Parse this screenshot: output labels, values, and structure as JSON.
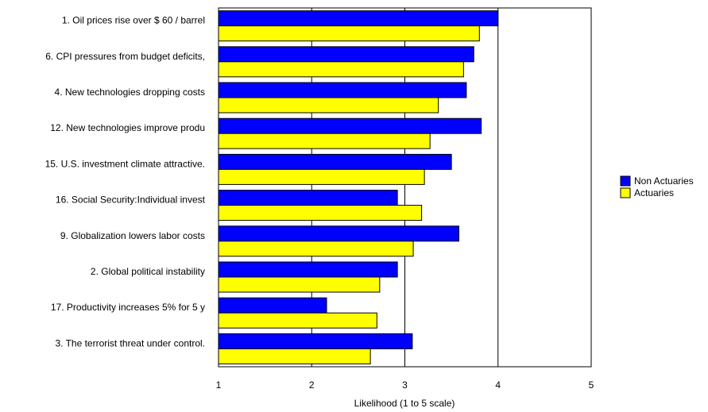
{
  "chart_data": {
    "type": "bar",
    "orientation": "horizontal",
    "title": "",
    "xlabel": "Likelihood (1 to 5 scale)",
    "ylabel": "",
    "xlim": [
      1,
      5
    ],
    "xticks": [
      1,
      2,
      3,
      4,
      5
    ],
    "grid": "vertical",
    "legend_position": "right",
    "categories": [
      "1. Oil prices rise over $ 60 / barrel",
      "6. CPI pressures from budget deficits,",
      "4. New technologies dropping costs",
      "12. New technologies improve produ",
      "15. U.S. investment climate attractive.",
      "16. Social Security:Individual invest",
      "9. Globalization lowers labor costs",
      "2. Global political instability",
      "17. Productivity increases 5% for 5 y",
      "3. The terrorist threat under control."
    ],
    "series": [
      {
        "name": "Non Actuaries",
        "color": "#0000ff",
        "values": [
          4.0,
          3.74,
          3.66,
          3.82,
          3.5,
          2.92,
          3.58,
          2.92,
          2.16,
          3.08
        ]
      },
      {
        "name": "Actuaries",
        "color": "#ffff00",
        "values": [
          3.8,
          3.63,
          3.36,
          3.27,
          3.21,
          3.18,
          3.09,
          2.73,
          2.7,
          2.63
        ]
      }
    ]
  }
}
